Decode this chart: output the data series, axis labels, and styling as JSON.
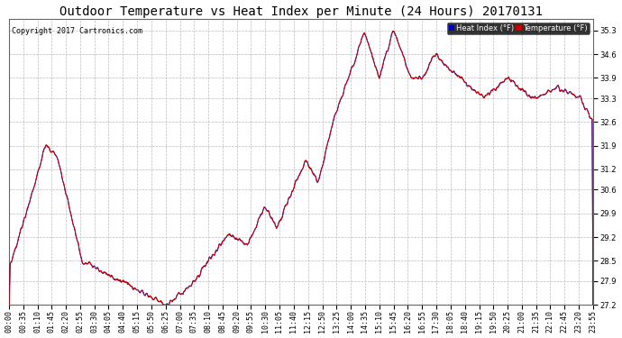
{
  "title": "Outdoor Temperature vs Heat Index per Minute (24 Hours) 20170131",
  "copyright": "Copyright 2017 Cartronics.com",
  "ylim": [
    27.2,
    35.65
  ],
  "yticks": [
    27.2,
    27.9,
    28.5,
    29.2,
    29.9,
    30.6,
    31.2,
    31.9,
    32.6,
    33.3,
    33.9,
    34.6,
    35.3
  ],
  "legend_heat_label": "Heat Index (°F)",
  "legend_temp_label": "Temperature (°F)",
  "heat_color": "#0000cc",
  "temp_color": "#cc0000",
  "background_color": "#ffffff",
  "plot_bg_color": "#ffffff",
  "grid_color": "#bbbbbb",
  "title_fontsize": 10,
  "tick_fontsize": 6,
  "copyright_fontsize": 6,
  "x_tick_labels": [
    "00:00",
    "00:35",
    "01:10",
    "01:45",
    "02:20",
    "02:55",
    "03:30",
    "04:05",
    "04:40",
    "05:15",
    "05:50",
    "06:25",
    "07:00",
    "07:35",
    "08:10",
    "08:45",
    "09:20",
    "09:55",
    "10:30",
    "11:05",
    "11:40",
    "12:15",
    "12:50",
    "13:25",
    "14:00",
    "14:35",
    "15:10",
    "15:45",
    "16:20",
    "16:55",
    "17:30",
    "18:05",
    "18:40",
    "19:15",
    "19:50",
    "20:25",
    "21:00",
    "21:35",
    "22:10",
    "22:45",
    "23:20",
    "23:55"
  ]
}
